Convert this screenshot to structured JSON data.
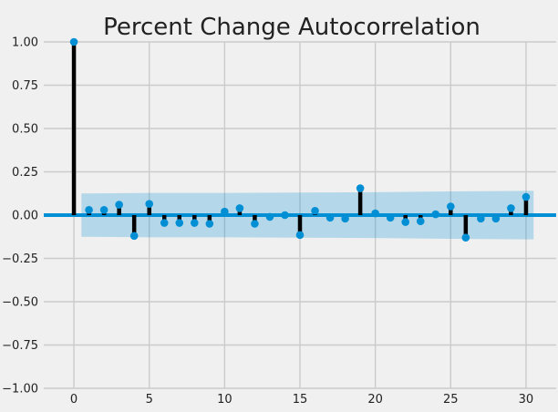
{
  "chart_data": {
    "type": "stem",
    "title": "Percent Change Autocorrelation",
    "xlabel": "",
    "ylabel": "",
    "xlim": [
      -2,
      32
    ],
    "ylim": [
      -1.0,
      1.0
    ],
    "xticks": [
      0,
      5,
      10,
      15,
      20,
      25,
      30
    ],
    "yticks": [
      1.0,
      0.75,
      0.5,
      0.25,
      0.0,
      -0.25,
      -0.5,
      -0.75,
      -1.0
    ],
    "xtick_labels": [
      "0",
      "5",
      "10",
      "15",
      "20",
      "25",
      "30"
    ],
    "ytick_labels": [
      "1.00",
      "0.75",
      "0.50",
      "0.25",
      "0.00",
      "−0.25",
      "−0.50",
      "−0.75",
      "−1.00"
    ],
    "grid": true,
    "lags": [
      0,
      1,
      2,
      3,
      4,
      5,
      6,
      7,
      8,
      9,
      10,
      11,
      12,
      13,
      14,
      15,
      16,
      17,
      18,
      19,
      20,
      21,
      22,
      23,
      24,
      25,
      26,
      27,
      28,
      29,
      30
    ],
    "values": [
      1.0,
      0.03,
      0.03,
      0.06,
      -0.12,
      0.065,
      -0.045,
      -0.045,
      -0.045,
      -0.05,
      0.02,
      0.04,
      -0.05,
      -0.01,
      0.0,
      -0.115,
      0.025,
      -0.015,
      -0.02,
      0.155,
      0.01,
      -0.015,
      -0.04,
      -0.035,
      0.005,
      0.05,
      -0.13,
      -0.02,
      -0.02,
      0.04,
      0.105
    ],
    "confidence_band": {
      "x": [
        0.5,
        5,
        10,
        15,
        20,
        25,
        30.5
      ],
      "upper": [
        0.125,
        0.128,
        0.128,
        0.13,
        0.132,
        0.137,
        0.14
      ],
      "lower": [
        -0.125,
        -0.128,
        -0.128,
        -0.13,
        -0.132,
        -0.137,
        -0.14
      ]
    },
    "colors": {
      "background": "#f0f0f0",
      "grid": "#cbcbcb",
      "marker": "#008fd5",
      "stem": "#000000",
      "zero_line": "#008fd5",
      "band": "#008fd5"
    }
  }
}
